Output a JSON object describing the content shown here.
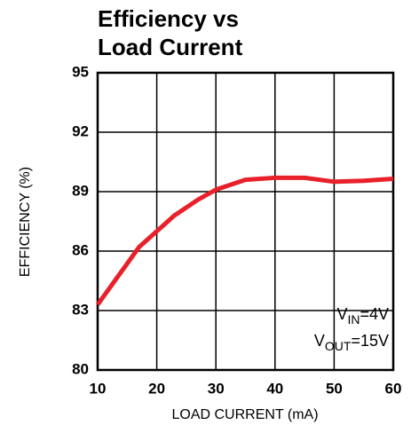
{
  "chart_data": {
    "type": "line",
    "title": [
      "Efficiency vs",
      "Load Current"
    ],
    "xlabel": "LOAD CURRENT (mA)",
    "ylabel": "EFFICIENCY (%)",
    "x": [
      10,
      17,
      20,
      23,
      27,
      30,
      35,
      40,
      45,
      50,
      55,
      60
    ],
    "series": [
      {
        "color": "#e8202a",
        "values": [
          83.3,
          86.2,
          87.0,
          87.8,
          88.6,
          89.1,
          89.6,
          89.7,
          89.7,
          89.5,
          89.55,
          89.65
        ]
      }
    ],
    "xlim": [
      10,
      60
    ],
    "xticks": [
      10,
      20,
      30,
      40,
      50,
      60
    ],
    "ylim": [
      80,
      95
    ],
    "yticks": [
      80,
      83,
      86,
      89,
      92,
      95
    ],
    "grid": true,
    "annotations": [
      [
        "V",
        "IN",
        "=4V"
      ],
      [
        "V",
        "OUT",
        "=15V"
      ]
    ]
  }
}
